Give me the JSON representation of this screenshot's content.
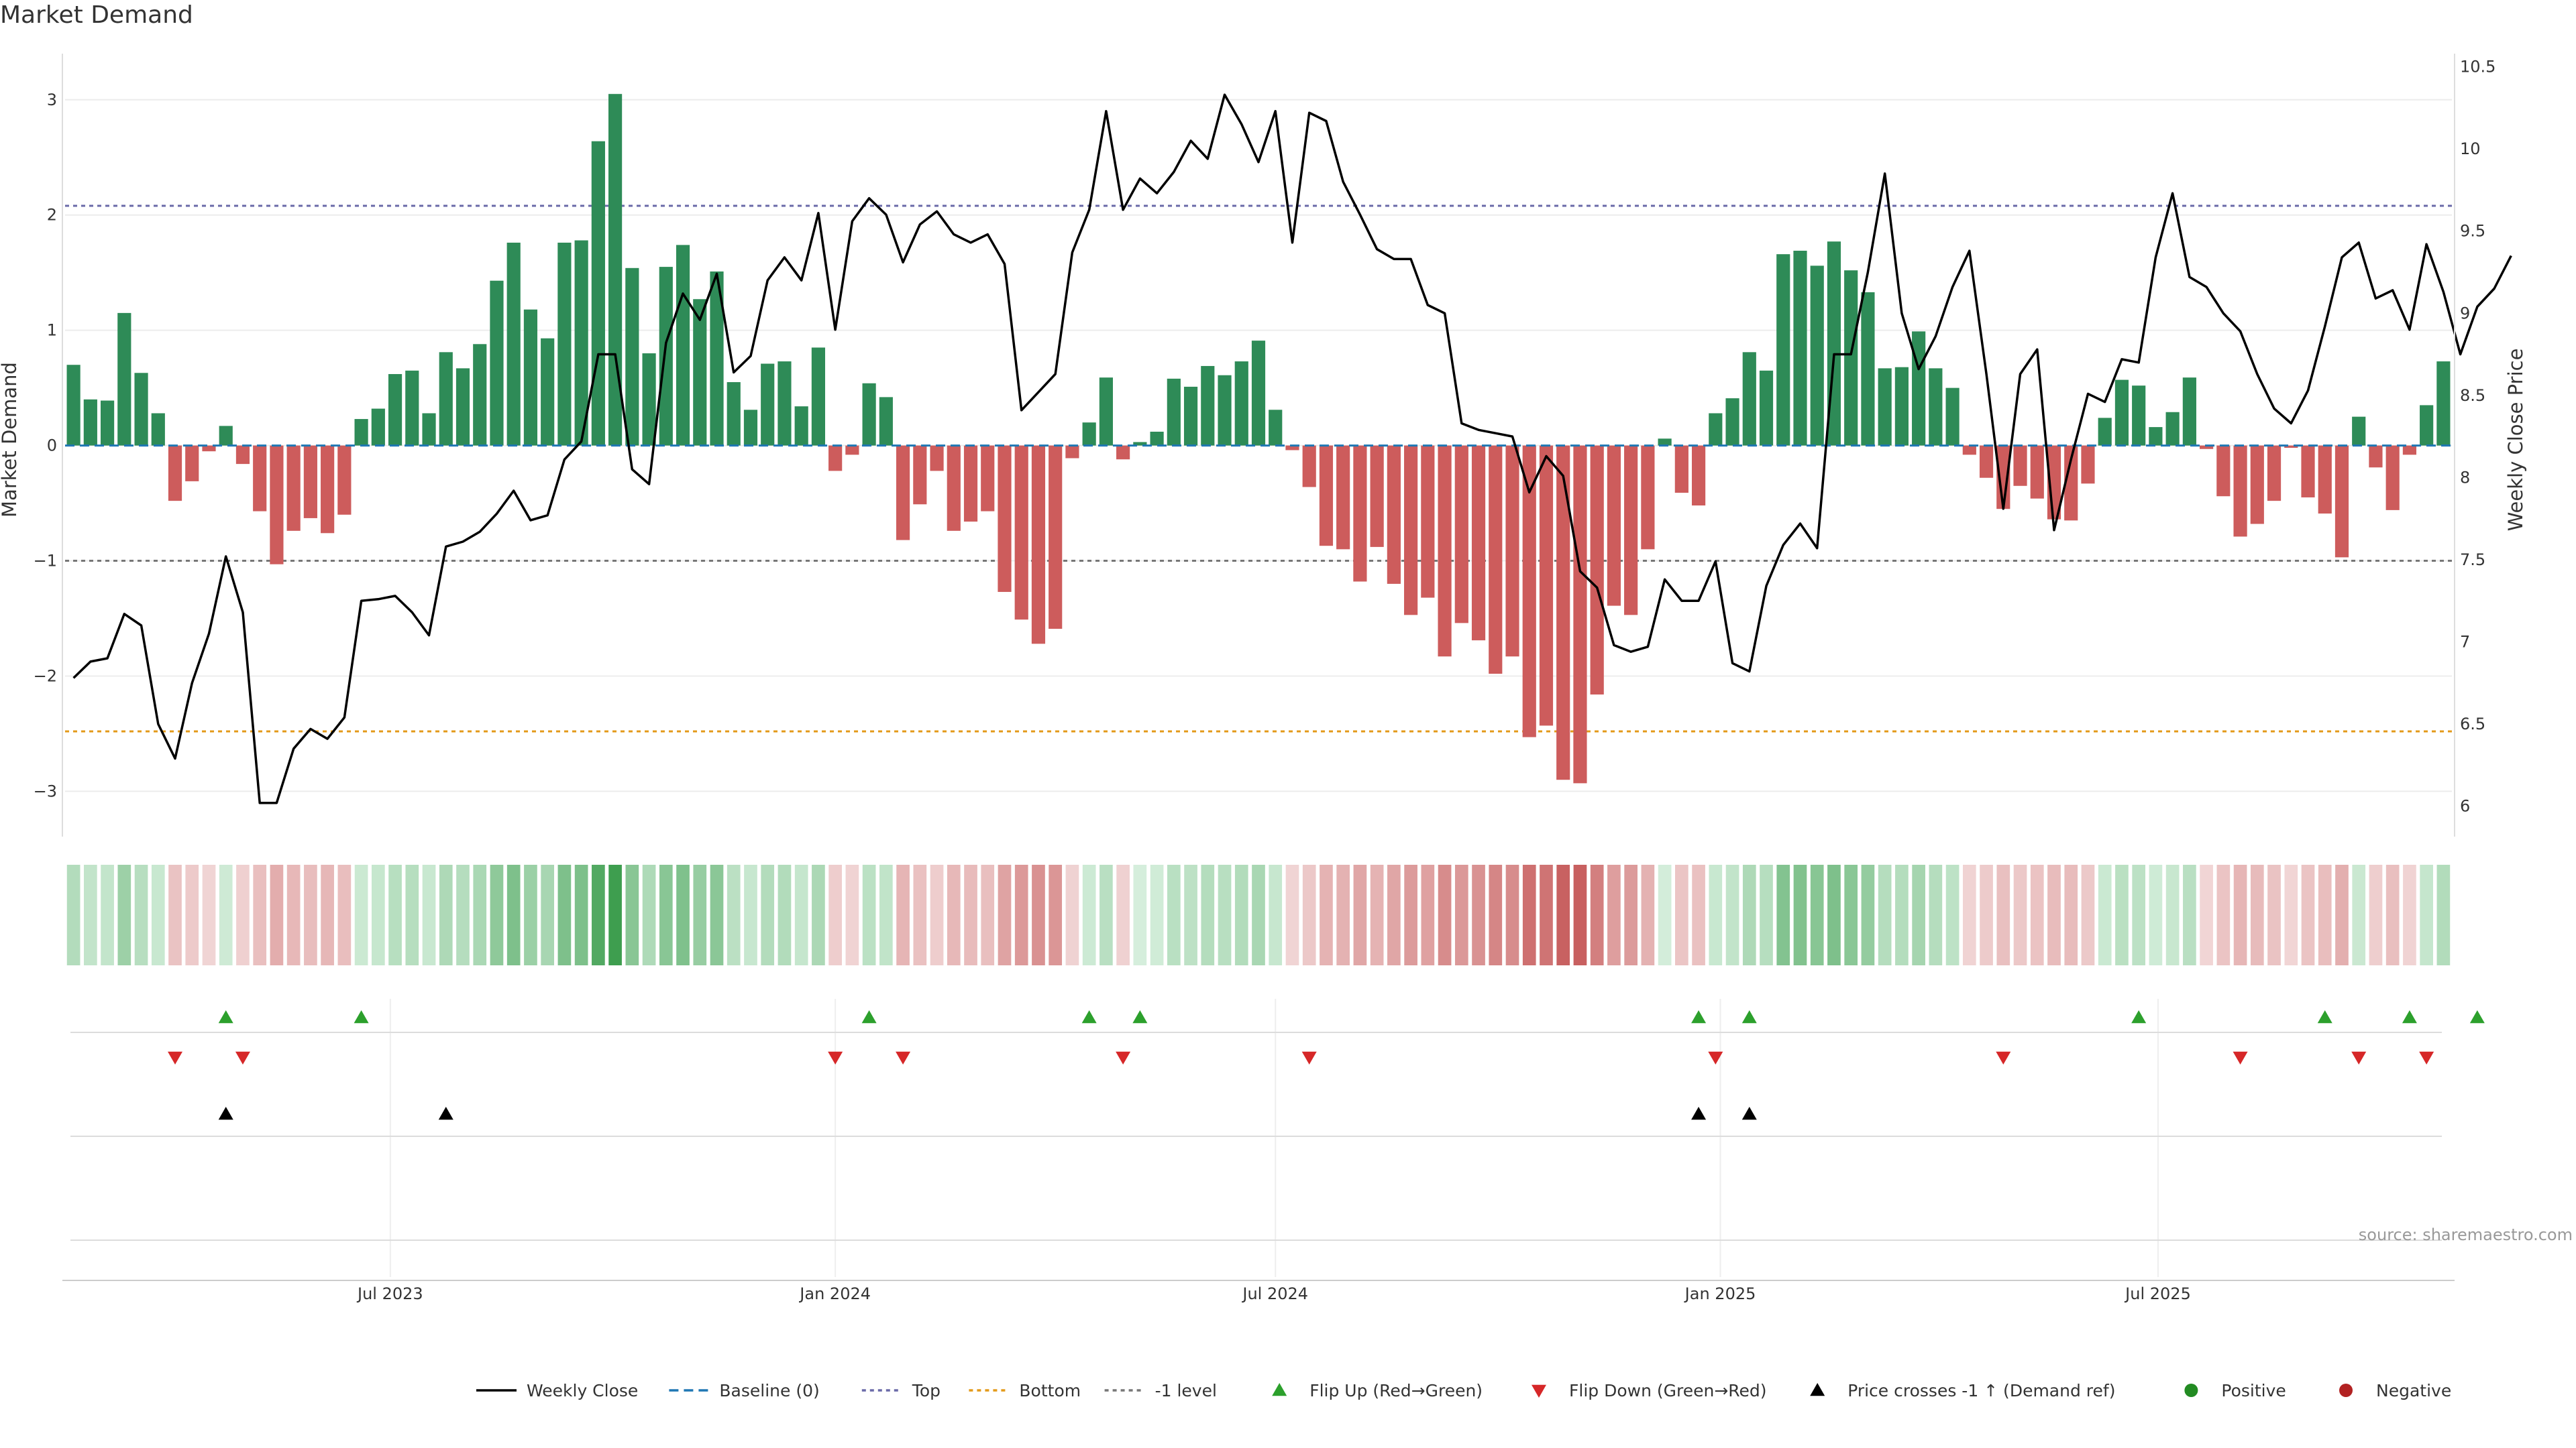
{
  "title": "Market Demand",
  "source": "source: sharemaestro.com",
  "chart_data": {
    "type": "bar+line",
    "x_start": "2023-02-20",
    "x_step_days": 7,
    "demand": [
      0.7,
      0.4,
      0.39,
      1.15,
      0.63,
      0.28,
      -0.48,
      -0.31,
      -0.05,
      0.17,
      -0.16,
      -0.57,
      -1.03,
      -0.74,
      -0.63,
      -0.76,
      -0.6,
      0.23,
      0.32,
      0.62,
      0.65,
      0.28,
      0.81,
      0.67,
      0.88,
      1.43,
      1.76,
      1.18,
      0.93,
      1.76,
      1.78,
      2.64,
      3.05,
      1.54,
      0.8,
      1.55,
      1.74,
      1.27,
      1.51,
      0.55,
      0.31,
      0.71,
      0.73,
      0.34,
      0.85,
      -0.22,
      -0.08,
      0.54,
      0.42,
      -0.82,
      -0.51,
      -0.22,
      -0.74,
      -0.66,
      -0.57,
      -1.27,
      -1.51,
      -1.72,
      -1.59,
      -0.11,
      0.2,
      0.59,
      -0.12,
      0.03,
      0.12,
      0.58,
      0.51,
      0.69,
      0.61,
      0.73,
      0.91,
      0.31,
      -0.04,
      -0.36,
      -0.87,
      -0.9,
      -1.18,
      -0.88,
      -1.2,
      -1.47,
      -1.32,
      -1.83,
      -1.54,
      -1.69,
      -1.98,
      -1.83,
      -2.53,
      -2.43,
      -2.9,
      -2.93,
      -2.16,
      -1.39,
      -1.47,
      -0.9,
      0.06,
      -0.41,
      -0.52,
      0.28,
      0.41,
      0.81,
      0.65,
      1.66,
      1.69,
      1.56,
      1.77,
      1.52,
      1.33,
      0.67,
      0.68,
      0.99,
      0.67,
      0.5,
      -0.08,
      -0.28,
      -0.55,
      -0.35,
      -0.46,
      -0.64,
      -0.65,
      -0.33,
      0.24,
      0.57,
      0.52,
      0.16,
      0.29,
      0.59,
      -0.03,
      -0.44,
      -0.79,
      -0.68,
      -0.48,
      -0.02,
      -0.45,
      -0.59,
      -0.97,
      0.25,
      -0.19,
      -0.56,
      -0.08,
      0.35,
      0.73
    ],
    "close": [
      6.78,
      6.88,
      6.9,
      7.17,
      7.1,
      6.5,
      6.29,
      6.75,
      7.05,
      7.52,
      7.18,
      6.02,
      6.02,
      6.35,
      6.47,
      6.41,
      6.54,
      7.25,
      7.26,
      7.28,
      7.18,
      7.04,
      7.58,
      7.61,
      7.67,
      7.78,
      7.92,
      7.74,
      7.77,
      8.11,
      8.22,
      8.75,
      8.75,
      8.05,
      7.96,
      8.82,
      9.12,
      8.96,
      9.24,
      8.64,
      8.74,
      9.2,
      9.34,
      9.2,
      9.61,
      8.9,
      9.56,
      9.7,
      9.6,
      9.31,
      9.54,
      9.62,
      9.48,
      9.43,
      9.48,
      9.3,
      8.41,
      8.52,
      8.63,
      9.37,
      9.63,
      10.23,
      9.63,
      9.82,
      9.73,
      9.86,
      10.05,
      9.94,
      10.33,
      10.15,
      9.92,
      10.23,
      9.43,
      10.22,
      10.17,
      9.8,
      9.6,
      9.39,
      9.33,
      9.33,
      9.05,
      9.0,
      8.33,
      8.29,
      8.27,
      8.25,
      7.91,
      8.13,
      8.01,
      7.43,
      7.33,
      6.98,
      6.94,
      6.97,
      7.38,
      7.25,
      7.25,
      7.49,
      6.87,
      6.82,
      7.34,
      7.59,
      7.72,
      7.57,
      8.75,
      8.75,
      9.25,
      9.85,
      9.0,
      8.66,
      8.86,
      9.16,
      9.38,
      8.63,
      7.81,
      8.63,
      8.78,
      7.68,
      8.11,
      8.51,
      8.46,
      8.72,
      8.7,
      9.34,
      9.73,
      9.22,
      9.16,
      9.0,
      8.89,
      8.63,
      8.42,
      8.33,
      8.53,
      8.92,
      9.34,
      9.43,
      9.09,
      9.14,
      8.9,
      9.42,
      9.13,
      8.75,
      9.04,
      9.15,
      9.35
    ],
    "y_left": {
      "label": "Market Demand",
      "range": [
        -3.3,
        3.4
      ],
      "ticks": [
        "−3",
        "−2",
        "−1",
        "0",
        "1",
        "2",
        "3"
      ]
    },
    "y_right": {
      "label": "Weekly Close Price",
      "range": [
        5.88,
        10.58
      ],
      "ticks": [
        "6",
        "6.5",
        "7",
        "7.5",
        "8",
        "8.5",
        "9",
        "9.5",
        "10",
        "10.5"
      ]
    },
    "x_ticks": [
      "Jul 2023",
      "Jan 2024",
      "Jul 2024",
      "Jan 2025",
      "Jul 2025"
    ],
    "x_tick_dates": [
      "2023-07-01",
      "2024-01-01",
      "2024-07-01",
      "2025-01-01",
      "2025-07-01"
    ],
    "top_level": 2.08,
    "bottom_level": -2.48,
    "minus1_level": -1,
    "flip_up_idx": [
      9,
      17,
      47,
      60,
      63,
      96,
      99,
      122,
      133,
      138,
      142
    ],
    "flip_down_idx": [
      6,
      10,
      45,
      49,
      62,
      73,
      97,
      114,
      128,
      135,
      139
    ],
    "price_cross_idx": [
      9,
      22,
      96,
      99
    ],
    "legend": [
      "Weekly Close",
      "Baseline (0)",
      "Top",
      "Bottom",
      "-1 level",
      "Flip Up (Red→Green)",
      "Flip Down (Green→Red)",
      "Price crosses -1 ↑ (Demand ref)",
      "Positive",
      "Negative"
    ],
    "colors": {
      "positive": "#2e8b57",
      "negative": "#cd5c5c",
      "line": "#000000",
      "baseline": "#1f77b4",
      "top": "#6a6aa8",
      "bottom": "#e39a1a",
      "minus1": "#777777",
      "flip_up": "#2ca02c",
      "flip_down": "#d62728",
      "cross": "#000000",
      "pos_dot": "#228b22",
      "neg_dot": "#b22222"
    }
  }
}
